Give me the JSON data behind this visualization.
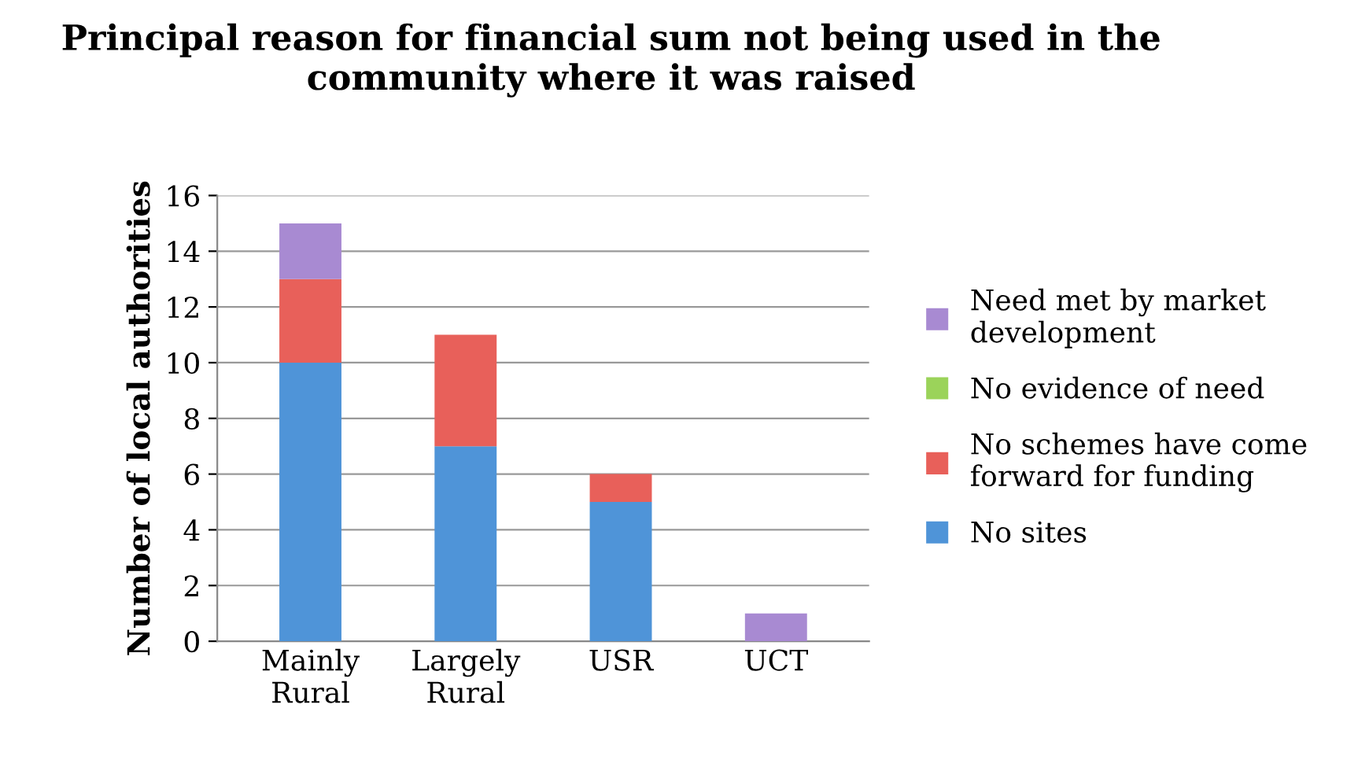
{
  "chart_data": {
    "type": "bar",
    "stacked": true,
    "title": "Principal reason for financial sum not being used in the community where it was raised",
    "ylabel": "Number of local authorities",
    "categories": [
      "Mainly Rural",
      "Largely Rural",
      "USR",
      "UCT"
    ],
    "series": [
      {
        "name": "No sites",
        "color": "#4f94d8",
        "values": [
          10,
          7,
          5,
          0
        ]
      },
      {
        "name": "No schemes have come forward for funding",
        "color": "#e8605a",
        "values": [
          3,
          4,
          1,
          0
        ]
      },
      {
        "name": "No evidence of need",
        "color": "#9bd35a",
        "values": [
          0,
          0,
          0,
          0
        ]
      },
      {
        "name": "Need met by market development",
        "color": "#a88ad2",
        "values": [
          2,
          0,
          0,
          1
        ]
      }
    ],
    "ylim": [
      0,
      16
    ],
    "yticks": [
      0,
      2,
      4,
      6,
      8,
      10,
      12,
      14,
      16
    ],
    "grid": "y",
    "legend": "right"
  }
}
